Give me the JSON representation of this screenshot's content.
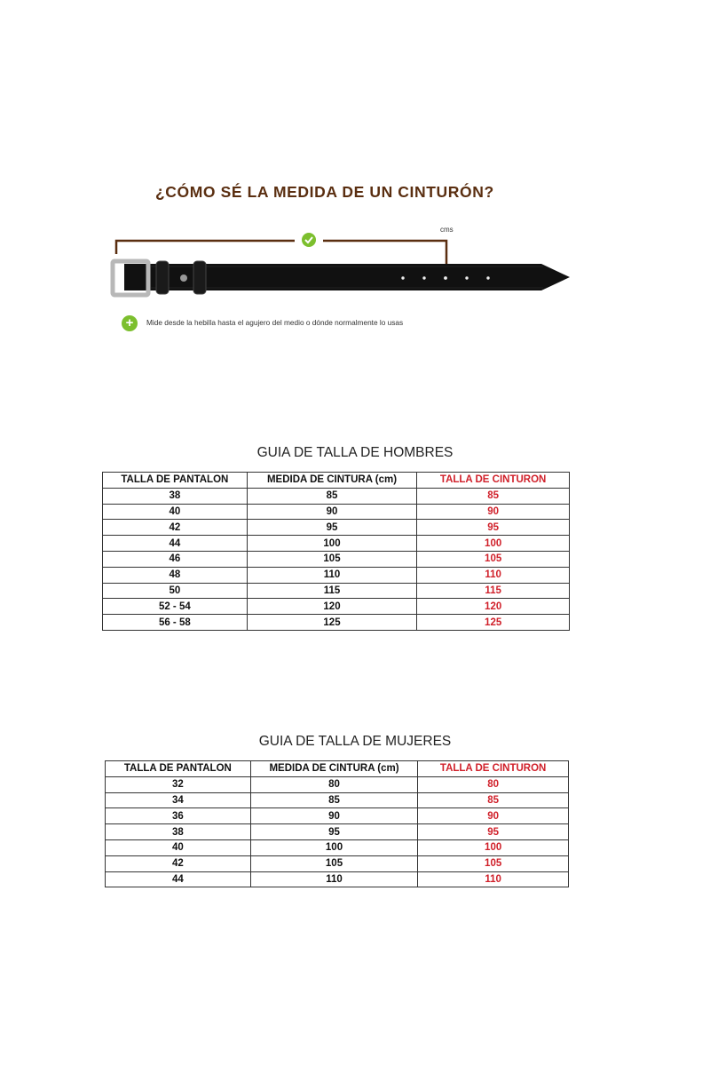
{
  "infographic": {
    "title": "¿CÓMO SÉ LA MEDIDA DE UN CINTURÓN?",
    "unit_label": "cms",
    "instruction": "Mide desde la hebilla hasta el agujero del medio o dónde normalmente lo usas",
    "icons": [
      "check-icon",
      "plus-icon"
    ],
    "colors": {
      "title": "#5a2e10",
      "green": "#7cbf2e"
    }
  },
  "men": {
    "title": "GUIA DE TALLA DE HOMBRES",
    "headers": [
      "TALLA DE PANTALON",
      "MEDIDA  DE CINTURA (cm)",
      "TALLA DE CINTURON"
    ],
    "rows": [
      [
        "38",
        "85",
        "85"
      ],
      [
        "40",
        "90",
        "90"
      ],
      [
        "42",
        "95",
        "95"
      ],
      [
        "44",
        "100",
        "100"
      ],
      [
        "46",
        "105",
        "105"
      ],
      [
        "48",
        "110",
        "110"
      ],
      [
        "50",
        "115",
        "115"
      ],
      [
        "52 - 54",
        "120",
        "120"
      ],
      [
        "56 - 58",
        "125",
        "125"
      ]
    ]
  },
  "women": {
    "title": "GUIA DE TALLA DE MUJERES",
    "headers": [
      "TALLA DE PANTALON",
      "MEDIDA  DE CINTURA (cm)",
      "TALLA DE CINTURON"
    ],
    "rows": [
      [
        "32",
        "80",
        "80"
      ],
      [
        "34",
        "85",
        "85"
      ],
      [
        "36",
        "90",
        "90"
      ],
      [
        "38",
        "95",
        "95"
      ],
      [
        "40",
        "100",
        "100"
      ],
      [
        "42",
        "105",
        "105"
      ],
      [
        "44",
        "110",
        "110"
      ]
    ]
  },
  "accent_red": "#d0202a"
}
